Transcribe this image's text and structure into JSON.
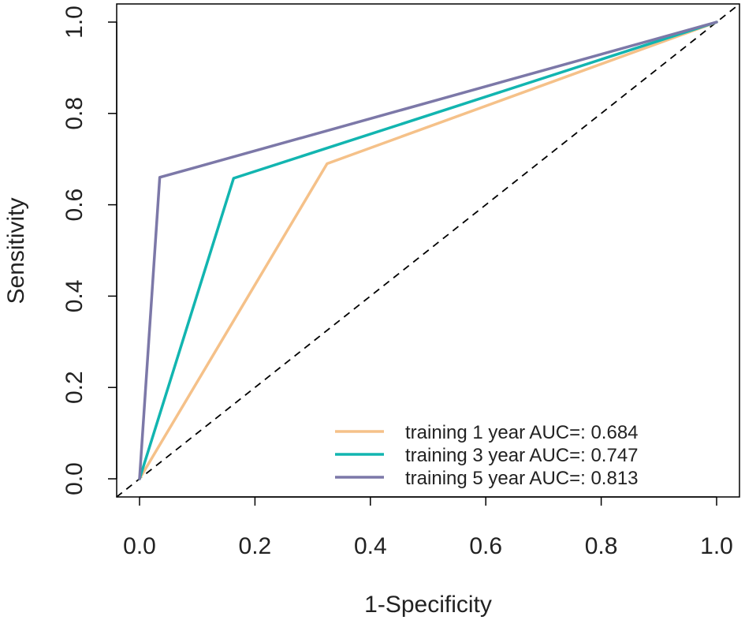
{
  "chart_data": {
    "type": "line",
    "title": "",
    "xlabel": "1-Specificity",
    "ylabel": "Sensitivity",
    "xlim": [
      0,
      1
    ],
    "ylim": [
      0,
      1
    ],
    "x_ticks": [
      "0.0",
      "0.2",
      "0.4",
      "0.6",
      "0.8",
      "1.0"
    ],
    "y_ticks": [
      "0.0",
      "0.2",
      "0.4",
      "0.6",
      "0.8",
      "1.0"
    ],
    "grid": false,
    "legend_position": "bottom-right",
    "reference_line": {
      "name": "chance",
      "style": "dashed",
      "color": "#000000",
      "x": [
        0,
        1
      ],
      "y": [
        0,
        1
      ]
    },
    "series": [
      {
        "name": "training 1 year AUC=: 0.684",
        "color": "#F5C189",
        "x": [
          0,
          0.325,
          1
        ],
        "y": [
          0,
          0.69,
          1
        ]
      },
      {
        "name": "training 3 year AUC=: 0.747",
        "color": "#12B5B0",
        "x": [
          0,
          0.163,
          1
        ],
        "y": [
          0,
          0.658,
          1
        ]
      },
      {
        "name": "training 5 year AUC=: 0.813",
        "color": "#7C78A8",
        "x": [
          0,
          0.035,
          1
        ],
        "y": [
          0,
          0.66,
          1
        ]
      }
    ]
  }
}
